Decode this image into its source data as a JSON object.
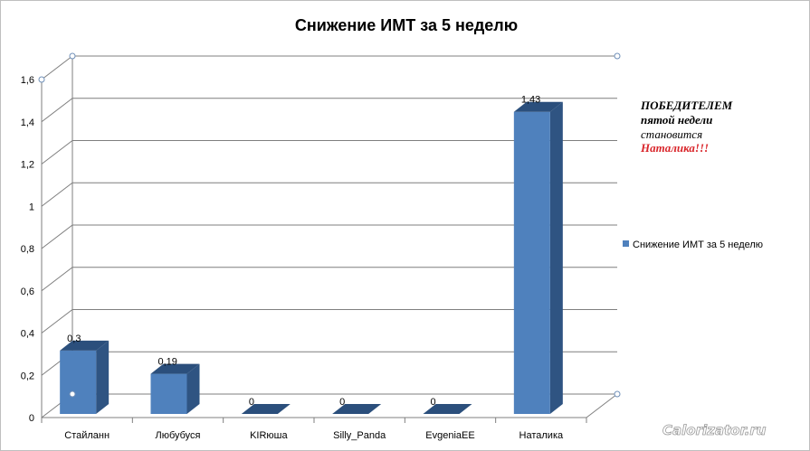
{
  "chart_data": {
    "type": "bar",
    "title": "Снижение ИМТ за 5 неделю",
    "categories": [
      "Стайланн",
      "Любубуся",
      "KIRюша",
      "Silly_Panda",
      "EvgeniaEE",
      "Наталика"
    ],
    "series": [
      {
        "name": "Снижение  ИМТ за 5 неделю",
        "values": [
          0.3,
          0.19,
          0,
          0,
          0,
          1.43
        ],
        "color": "#4f81bd"
      }
    ],
    "data_labels": [
      "0,3",
      "0,19",
      "0",
      "0",
      "0",
      "1,43"
    ],
    "y_ticks": [
      "0",
      "0,2",
      "0,4",
      "0,6",
      "0,8",
      "1",
      "1,2",
      "1,4",
      "1,6"
    ],
    "ylim": [
      0,
      1.6
    ],
    "grid": true,
    "legend_position": "right",
    "xlabel": "",
    "ylabel": ""
  },
  "annotation": {
    "line1": "ПОБЕДИТЕЛЕМ",
    "line2": "пятой недели",
    "line3": "становится",
    "line4": "Наталика!!!"
  },
  "watermark": "Calorizator.ru"
}
